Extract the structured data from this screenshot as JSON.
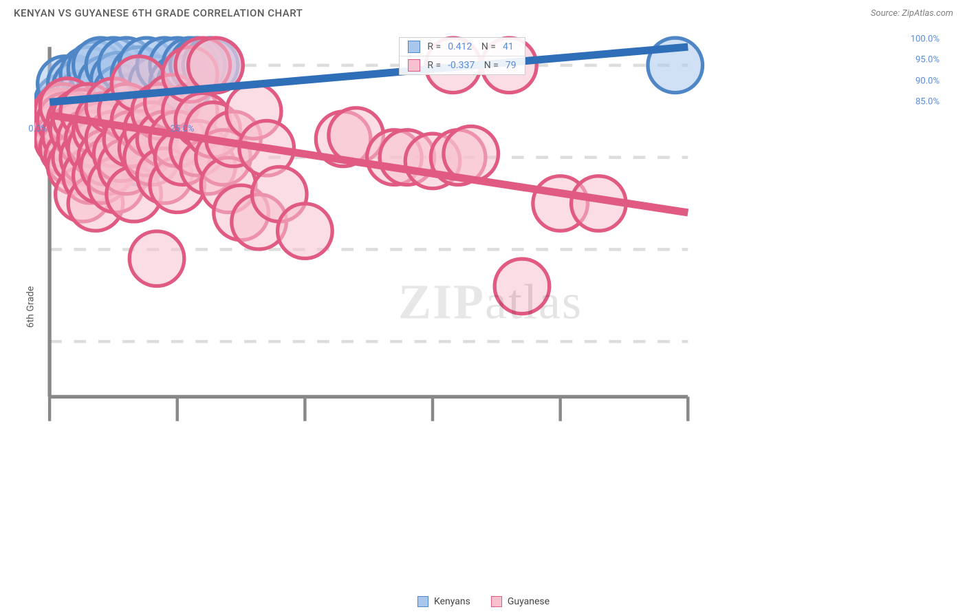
{
  "title": "KENYAN VS GUYANESE 6TH GRADE CORRELATION CHART",
  "source": "Source: ZipAtlas.com",
  "ylabel": "6th Grade",
  "watermark": {
    "left": "ZIP",
    "right": "atlas"
  },
  "chart": {
    "type": "scatter+regression",
    "background_color": "#ffffff",
    "grid_color": "#dddddd",
    "axis_color": "#888888",
    "xlim": [
      0,
      25
    ],
    "ylim": [
      82,
      101
    ],
    "x_ticks_major": [
      0,
      5,
      10,
      15,
      20,
      25
    ],
    "x_tick_labels": [
      {
        "v": 0,
        "t": "0.0%"
      },
      {
        "v": 25,
        "t": "25.0%"
      }
    ],
    "y_ticks": [
      {
        "v": 85,
        "t": "85.0%"
      },
      {
        "v": 90,
        "t": "90.0%"
      },
      {
        "v": 95,
        "t": "95.0%"
      },
      {
        "v": 100,
        "t": "100.0%"
      }
    ],
    "series": [
      {
        "name": "Kenyans",
        "color_fill": "#a9c7ec",
        "color_stroke": "#4f86c6",
        "line_color": "#2f6fb7",
        "marker_r": 9,
        "fill_opacity": 0.55,
        "reg_line": {
          "x1": 0,
          "y1": 98.0,
          "x2": 25,
          "y2": 101
        },
        "R": "0.412",
        "N": "41",
        "points": [
          [
            0.2,
            97.0
          ],
          [
            0.3,
            97.2
          ],
          [
            0.4,
            97.5
          ],
          [
            0.5,
            98.0
          ],
          [
            0.5,
            97.0
          ],
          [
            0.6,
            99.0
          ],
          [
            0.7,
            96.8
          ],
          [
            0.8,
            97.3
          ],
          [
            1.0,
            96.5
          ],
          [
            1.0,
            99.0
          ],
          [
            1.1,
            97.0
          ],
          [
            1.2,
            98.8
          ],
          [
            1.3,
            98.2
          ],
          [
            1.5,
            99.5
          ],
          [
            1.6,
            98.0
          ],
          [
            1.8,
            96.5
          ],
          [
            1.8,
            99.8
          ],
          [
            2.0,
            100.0
          ],
          [
            2.0,
            97.5
          ],
          [
            2.2,
            99.0
          ],
          [
            2.3,
            96.0
          ],
          [
            2.5,
            100.0
          ],
          [
            2.7,
            99.2
          ],
          [
            2.8,
            98.5
          ],
          [
            3.0,
            100.0
          ],
          [
            3.2,
            98.0
          ],
          [
            3.5,
            99.5
          ],
          [
            3.5,
            95.0
          ],
          [
            3.8,
            100.0
          ],
          [
            4.0,
            97.0
          ],
          [
            4.2,
            99.0
          ],
          [
            4.5,
            100.0
          ],
          [
            4.8,
            98.0
          ],
          [
            5.0,
            100.0
          ],
          [
            5.0,
            99.0
          ],
          [
            5.3,
            99.0
          ],
          [
            5.5,
            100.0
          ],
          [
            5.8,
            100.0
          ],
          [
            6.3,
            100.0
          ],
          [
            6.5,
            100.0
          ],
          [
            24.5,
            100.0
          ]
        ]
      },
      {
        "name": "Guyanese",
        "color_fill": "#f7c1d0",
        "color_stroke": "#e05a82",
        "line_color": "#e05a82",
        "marker_r": 9,
        "fill_opacity": 0.55,
        "reg_line": {
          "x1": 0,
          "y1": 97.3,
          "x2": 25,
          "y2": 92.0
        },
        "R": "-0.337",
        "N": "79",
        "points": [
          [
            0.2,
            97.0
          ],
          [
            0.3,
            96.8
          ],
          [
            0.4,
            97.2
          ],
          [
            0.4,
            96.5
          ],
          [
            0.5,
            97.5
          ],
          [
            0.5,
            96.0
          ],
          [
            0.6,
            97.0
          ],
          [
            0.7,
            95.5
          ],
          [
            0.7,
            97.8
          ],
          [
            0.8,
            96.2
          ],
          [
            0.9,
            95.0
          ],
          [
            1.0,
            97.0
          ],
          [
            1.0,
            94.5
          ],
          [
            1.1,
            96.5
          ],
          [
            1.2,
            95.0
          ],
          [
            1.2,
            97.2
          ],
          [
            1.3,
            93.0
          ],
          [
            1.4,
            96.0
          ],
          [
            1.5,
            95.0
          ],
          [
            1.5,
            97.5
          ],
          [
            1.6,
            94.0
          ],
          [
            1.7,
            96.0
          ],
          [
            1.8,
            95.5
          ],
          [
            1.8,
            92.5
          ],
          [
            2.0,
            96.5
          ],
          [
            2.0,
            94.0
          ],
          [
            2.1,
            97.0
          ],
          [
            2.2,
            95.0
          ],
          [
            2.3,
            94.5
          ],
          [
            2.5,
            96.0
          ],
          [
            2.5,
            97.8
          ],
          [
            2.6,
            93.5
          ],
          [
            2.8,
            95.2
          ],
          [
            3.0,
            97.5
          ],
          [
            3.0,
            94.5
          ],
          [
            3.2,
            96.0
          ],
          [
            3.3,
            93.0
          ],
          [
            3.5,
            97.0
          ],
          [
            3.5,
            99.0
          ],
          [
            3.8,
            95.5
          ],
          [
            4.0,
            96.5
          ],
          [
            4.0,
            95.0
          ],
          [
            4.2,
            89.5
          ],
          [
            4.3,
            97.5
          ],
          [
            4.5,
            96.0
          ],
          [
            4.5,
            94.0
          ],
          [
            4.8,
            98.0
          ],
          [
            5.0,
            93.5
          ],
          [
            5.0,
            96.0
          ],
          [
            5.2,
            95.0
          ],
          [
            5.5,
            97.5
          ],
          [
            5.5,
            99.5
          ],
          [
            5.8,
            95.5
          ],
          [
            6.0,
            97.0
          ],
          [
            6.0,
            100.0
          ],
          [
            6.2,
            94.5
          ],
          [
            6.4,
            96.5
          ],
          [
            6.5,
            100.0
          ],
          [
            6.8,
            95.0
          ],
          [
            7.0,
            93.5
          ],
          [
            7.2,
            96.0
          ],
          [
            7.5,
            92.0
          ],
          [
            8.0,
            97.5
          ],
          [
            8.2,
            91.5
          ],
          [
            8.5,
            95.5
          ],
          [
            9.0,
            93.0
          ],
          [
            10.0,
            91.0
          ],
          [
            11.5,
            96.0
          ],
          [
            12.0,
            96.2
          ],
          [
            13.5,
            95.0
          ],
          [
            14.0,
            95.0
          ],
          [
            15.0,
            94.8
          ],
          [
            15.8,
            100.0
          ],
          [
            16.0,
            95.0
          ],
          [
            18.0,
            100.0
          ],
          [
            18.5,
            88.0
          ],
          [
            20.0,
            92.5
          ],
          [
            21.5,
            92.5
          ],
          [
            16.5,
            95.2
          ]
        ]
      }
    ],
    "corr_box": {
      "left_pct": 40,
      "top_pct": 1
    },
    "bottom_legend": [
      {
        "label": "Kenyans",
        "fill": "#a9c7ec",
        "stroke": "#4f86c6"
      },
      {
        "label": "Guyanese",
        "fill": "#f7c1d0",
        "stroke": "#e05a82"
      }
    ]
  }
}
